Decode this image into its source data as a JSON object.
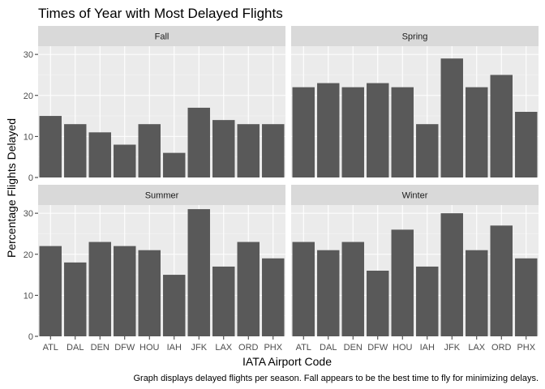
{
  "chart_data": {
    "type": "bar",
    "title": "Times of Year with Most Delayed Flights",
    "xlabel": "IATA Airport Code",
    "ylabel": "Percentage Flights Delayed",
    "caption": "Graph displays delayed flights per season. Fall appears to be the best time to fly for minimizing delays.",
    "categories": [
      "ATL",
      "DAL",
      "DEN",
      "DFW",
      "HOU",
      "IAH",
      "JFK",
      "LAX",
      "ORD",
      "PHX"
    ],
    "ylim": [
      0,
      32
    ],
    "yticks": [
      0,
      10,
      20,
      30
    ],
    "grid": true,
    "facets": [
      {
        "name": "Fall",
        "values": [
          15,
          13,
          11,
          8,
          13,
          6,
          17,
          14,
          13,
          13
        ]
      },
      {
        "name": "Spring",
        "values": [
          22,
          23,
          22,
          23,
          22,
          13,
          29,
          22,
          25,
          16
        ]
      },
      {
        "name": "Summer",
        "values": [
          22,
          18,
          23,
          22,
          21,
          15,
          31,
          17,
          23,
          19
        ]
      },
      {
        "name": "Winter",
        "values": [
          23,
          21,
          23,
          16,
          26,
          17,
          30,
          21,
          27,
          19
        ]
      }
    ],
    "colors": {
      "bar": "#595959",
      "panel": "#ebebeb",
      "strip": "#d9d9d9",
      "grid_major": "#ffffff",
      "grid_minor": "#f5f5f5",
      "tick": "#333333"
    }
  }
}
